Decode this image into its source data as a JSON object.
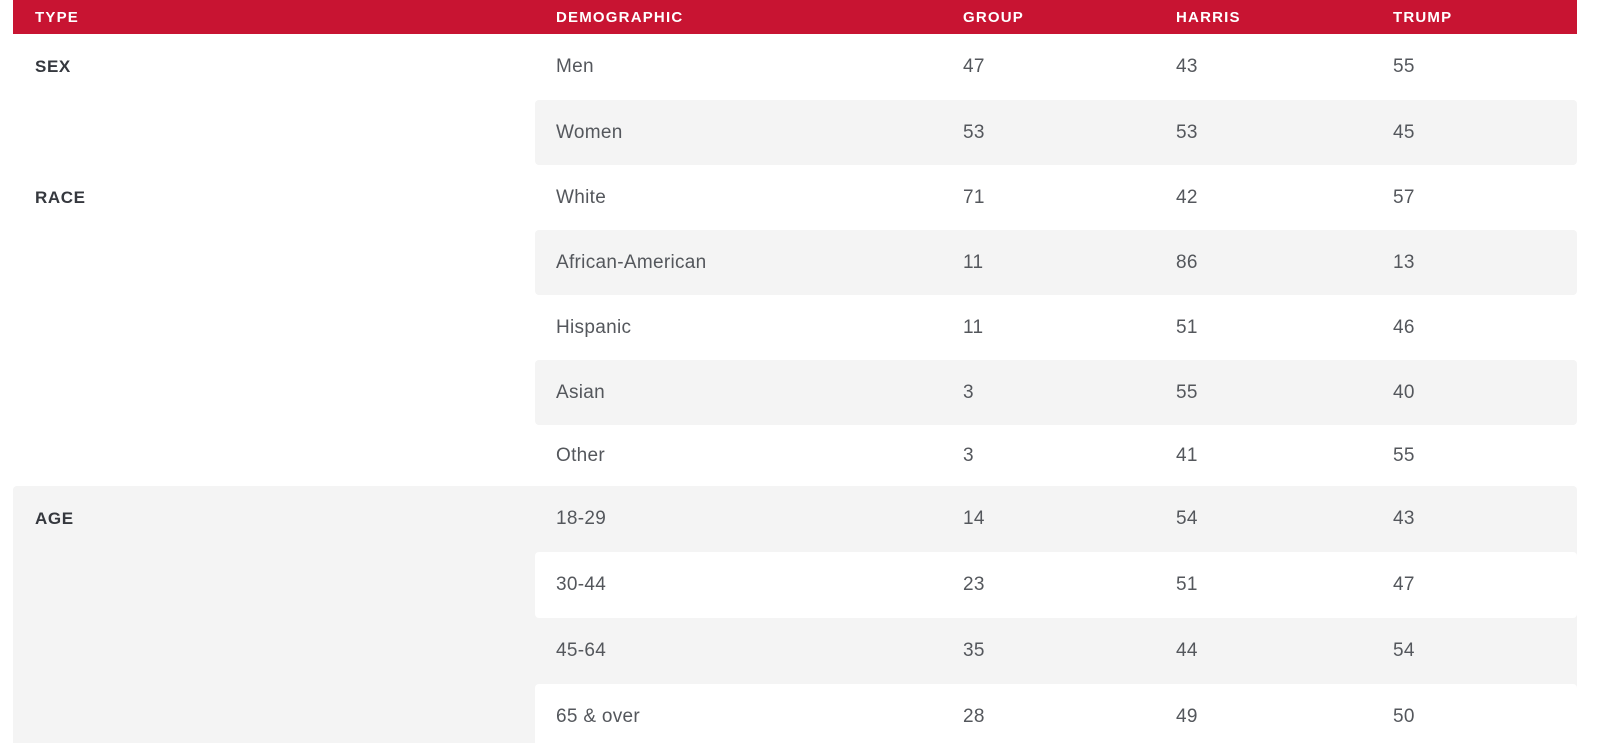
{
  "colors": {
    "header_bg": "#c81432",
    "row_stripe": "#f4f4f4",
    "header_text": "#ffffff",
    "body_text": "#54575c",
    "type_label_text": "#35383e"
  },
  "chart_data": {
    "type": "table",
    "columns": [
      "TYPE",
      "DEMOGRAPHIC",
      "GROUP",
      "HARRIS",
      "TRUMP"
    ],
    "sections": [
      {
        "type": "SEX",
        "rows": [
          {
            "demographic": "Men",
            "group": 47,
            "harris": 43,
            "trump": 55
          },
          {
            "demographic": "Women",
            "group": 53,
            "harris": 53,
            "trump": 45
          }
        ]
      },
      {
        "type": "RACE",
        "rows": [
          {
            "demographic": "White",
            "group": 71,
            "harris": 42,
            "trump": 57
          },
          {
            "demographic": "African-American",
            "group": 11,
            "harris": 86,
            "trump": 13
          },
          {
            "demographic": "Hispanic",
            "group": 11,
            "harris": 51,
            "trump": 46
          },
          {
            "demographic": "Asian",
            "group": 3,
            "harris": 55,
            "trump": 40
          },
          {
            "demographic": "Other",
            "group": 3,
            "harris": 41,
            "trump": 55
          }
        ]
      },
      {
        "type": "AGE",
        "rows": [
          {
            "demographic": "18-29",
            "group": 14,
            "harris": 54,
            "trump": 43
          },
          {
            "demographic": "30-44",
            "group": 23,
            "harris": 51,
            "trump": 47
          },
          {
            "demographic": "45-64",
            "group": 35,
            "harris": 44,
            "trump": 54
          },
          {
            "demographic": "65 & over",
            "group": 28,
            "harris": 49,
            "trump": 50
          }
        ]
      }
    ]
  }
}
